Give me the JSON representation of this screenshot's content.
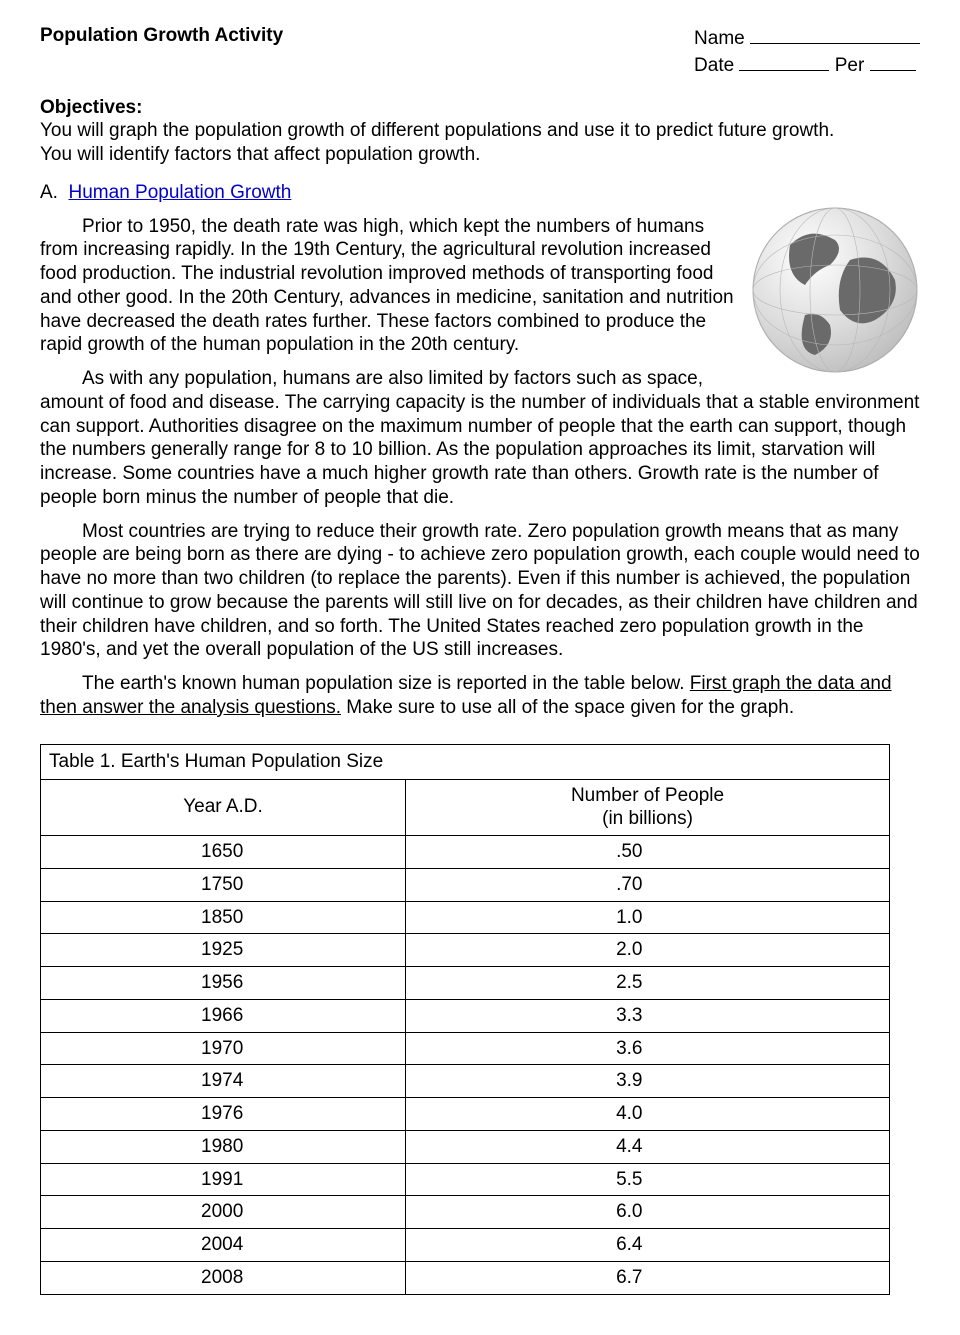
{
  "header": {
    "title": "Population Growth Activity",
    "name_label": "Name",
    "date_label": "Date",
    "per_label": "Per"
  },
  "objectives": {
    "heading": "Objectives:",
    "line1": "You will graph the population growth of different populations and use it to predict future growth.",
    "line2": "You will identify factors that affect population growth."
  },
  "sectionA": {
    "prefix": "A.",
    "title": "Human Population Growth",
    "para1": "Prior to 1950, the death rate was high, which kept the numbers of humans from increasing rapidly. In the 19th Century, the agricultural revolution increased food production. The industrial revolution improved methods of transporting food and other good. In the 20th Century, advances in medicine, sanitation and nutrition have decreased the death rates further. These factors combined to produce the rapid growth of the human population in the 20th century.",
    "para2": "As with any population, humans are also limited by factors such as space, amount of food and disease. The carrying capacity is the number of individuals that a stable environment can support. Authorities disagree on the maximum number of people that the earth can support, though the numbers generally range for 8 to 10 billion. As the population approaches its limit, starvation will increase. Some countries have a much higher growth rate than others. Growth rate is the number of people born minus the number of people that die.",
    "para3": "Most countries are trying to reduce their growth rate. Zero population growth means that as many people are being born as there are dying - to achieve zero population growth, each couple would need to have no more than two children (to replace the parents). Even if this number is achieved, the population will continue to grow because the parents will still live on for decades, as their children have children and their children have children, and so forth. The United States reached zero population growth in the 1980's, and yet the overall population of the US still increases.",
    "para4_a": "The earth's known human population size is reported in the table below.  ",
    "para4_underlined": "First graph the data and then answer the analysis questions.",
    "para4_b": "  Make sure to use all of the space given for the graph."
  },
  "table": {
    "caption": "Table 1. Earth's Human Population Size",
    "col1": "Year A.D.",
    "col2_line1": "Number of People",
    "col2_line2": "(in billions)",
    "rows": [
      {
        "year": "1650",
        "value": ".50"
      },
      {
        "year": "1750",
        "value": ".70"
      },
      {
        "year": "1850",
        "value": "1.0"
      },
      {
        "year": "1925",
        "value": "2.0"
      },
      {
        "year": "1956",
        "value": "2.5"
      },
      {
        "year": "1966",
        "value": "3.3"
      },
      {
        "year": "1970",
        "value": "3.6"
      },
      {
        "year": "1974",
        "value": "3.9"
      },
      {
        "year": "1976",
        "value": "4.0"
      },
      {
        "year": "1980",
        "value": "4.4"
      },
      {
        "year": "1991",
        "value": "5.5"
      },
      {
        "year": "2000",
        "value": "6.0"
      },
      {
        "year": "2004",
        "value": "6.4"
      },
      {
        "year": "2008",
        "value": "6.7"
      }
    ]
  },
  "globe": {
    "colors": {
      "land": "#6a6a6a",
      "ocean": "#e8e8e8",
      "outline": "#9a9a9a"
    }
  }
}
